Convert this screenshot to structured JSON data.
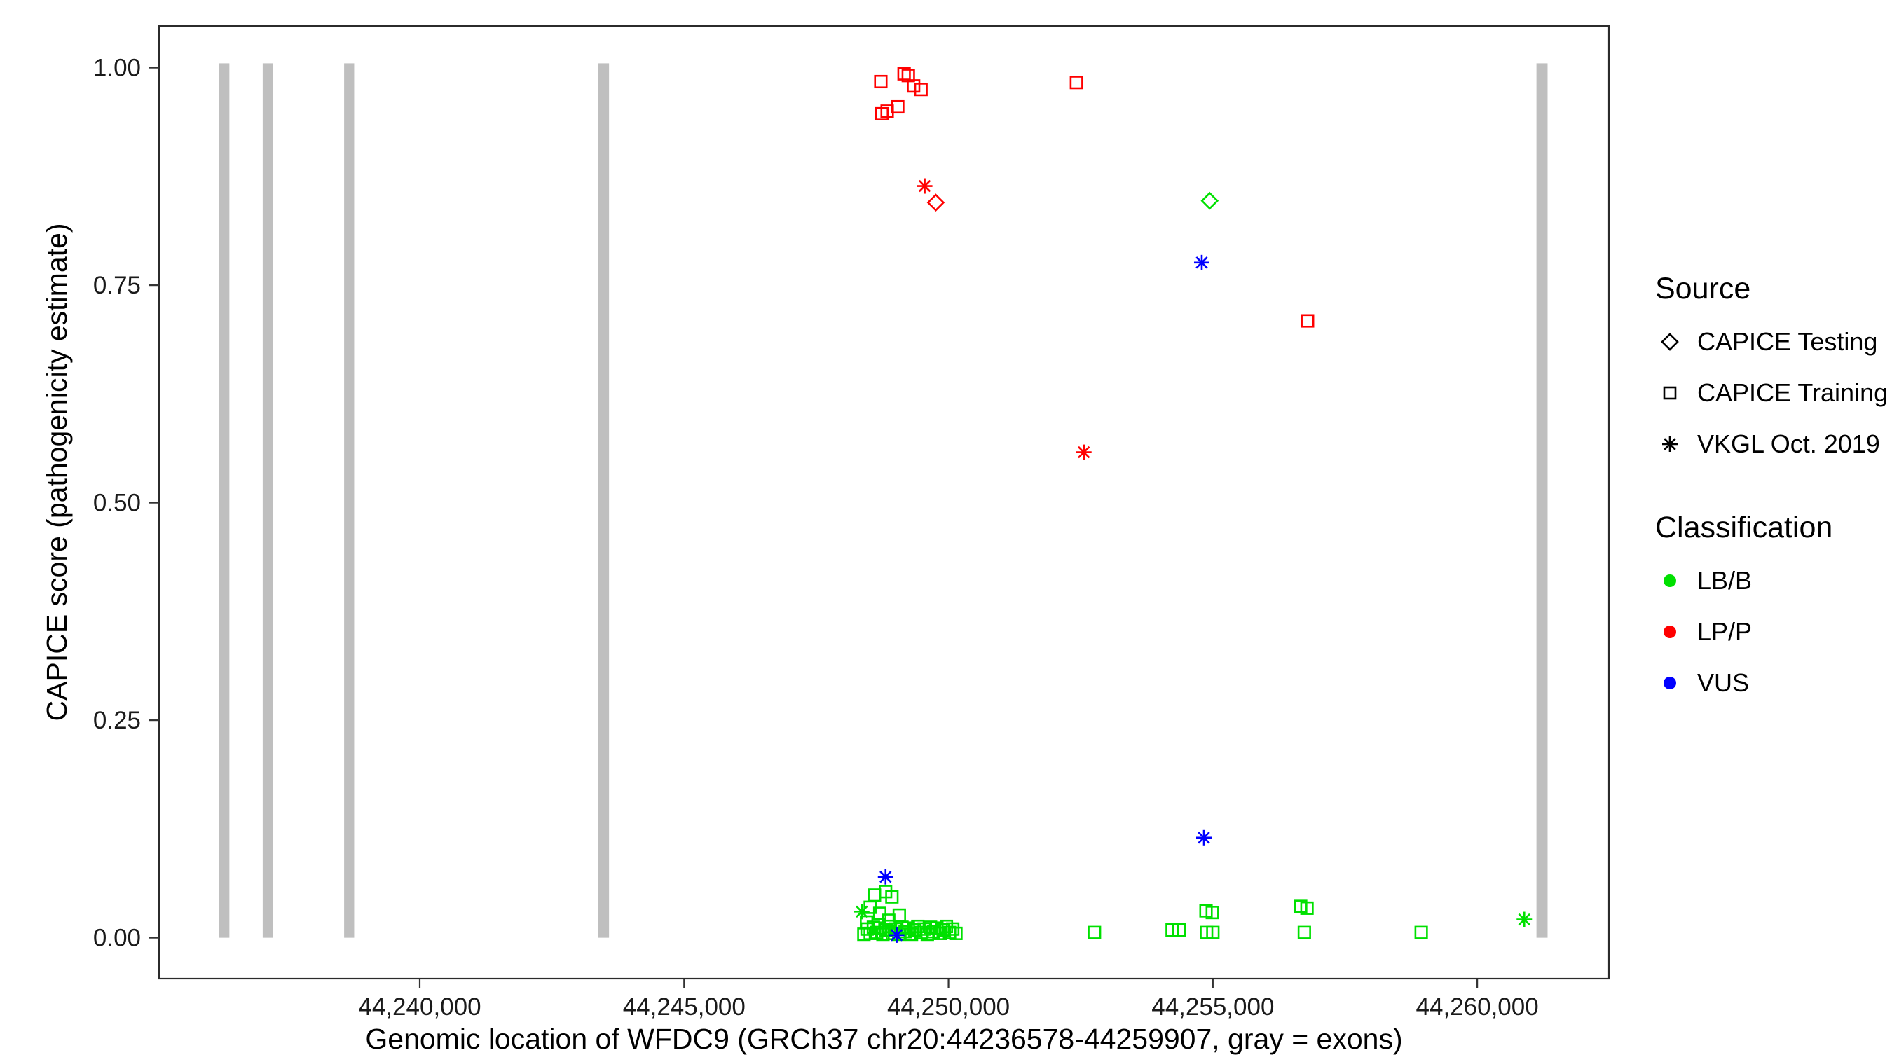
{
  "chart_data": {
    "type": "scatter",
    "title": "",
    "xlabel": "Genomic location of WFDC9 (GRCh37 chr20:44236578-44259907, gray = exons)",
    "ylabel": "CAPICE score (pathogenicity estimate)",
    "x_domain": [
      44235070,
      44262490
    ],
    "y_domain": [
      -0.047,
      1.048
    ],
    "grid": "off",
    "x_ticks": [
      {
        "value": 44240000,
        "label": "44,240,000"
      },
      {
        "value": 44245000,
        "label": "44,245,000"
      },
      {
        "value": 44250000,
        "label": "44,250,000"
      },
      {
        "value": 44255000,
        "label": "44,255,000"
      },
      {
        "value": 44260000,
        "label": "44,260,000"
      }
    ],
    "y_ticks": [
      {
        "value": 0.0,
        "label": "0.00"
      },
      {
        "value": 0.25,
        "label": "0.25"
      },
      {
        "value": 0.5,
        "label": "0.50"
      },
      {
        "value": 0.75,
        "label": "0.75"
      },
      {
        "value": 1.0,
        "label": "1.00"
      }
    ],
    "exon_color": "#BFBFBF",
    "exon_top": 1.005,
    "exon_bottom": 0.0,
    "exons": [
      {
        "start": 44236210,
        "end": 44236400
      },
      {
        "start": 44237030,
        "end": 44237220
      },
      {
        "start": 44238570,
        "end": 44238760
      },
      {
        "start": 44243370,
        "end": 44243580
      },
      {
        "start": 44261120,
        "end": 44261330
      }
    ],
    "classification_colors": {
      "LB/B": "#00E000",
      "LP/P": "#FF0000",
      "VUS": "#0000FF"
    },
    "source_shapes": {
      "CAPICE Testing": "diamond",
      "CAPICE Training": "square",
      "VKGL Oct. 2019": "asterisk"
    },
    "series": [
      {
        "name": "LB/B · CAPICE Training",
        "classification": "LB/B",
        "source": "CAPICE Training",
        "points": [
          [
            44248450,
            0.018
          ],
          [
            44248520,
            0.035
          ],
          [
            44248600,
            0.049
          ],
          [
            44248700,
            0.028
          ],
          [
            44248810,
            0.053
          ],
          [
            44248870,
            0.02
          ],
          [
            44248930,
            0.047
          ],
          [
            44249070,
            0.026
          ],
          [
            44248400,
            0.004
          ],
          [
            44248460,
            0.01
          ],
          [
            44248520,
            0.005
          ],
          [
            44248580,
            0.012
          ],
          [
            44248640,
            0.006
          ],
          [
            44248700,
            0.011
          ],
          [
            44248760,
            0.004
          ],
          [
            44248820,
            0.009
          ],
          [
            44248880,
            0.013
          ],
          [
            44248940,
            0.005
          ],
          [
            44249000,
            0.01
          ],
          [
            44249060,
            0.004
          ],
          [
            44249120,
            0.012
          ],
          [
            44249180,
            0.007
          ],
          [
            44249240,
            0.011
          ],
          [
            44249300,
            0.004
          ],
          [
            44249360,
            0.009
          ],
          [
            44249420,
            0.013
          ],
          [
            44249480,
            0.006
          ],
          [
            44249540,
            0.01
          ],
          [
            44249600,
            0.004
          ],
          [
            44249660,
            0.012
          ],
          [
            44249720,
            0.007
          ],
          [
            44249780,
            0.011
          ],
          [
            44249840,
            0.005
          ],
          [
            44249900,
            0.009
          ],
          [
            44249960,
            0.013
          ],
          [
            44250020,
            0.006
          ],
          [
            44250080,
            0.01
          ],
          [
            44250140,
            0.005
          ],
          [
            44252760,
            0.006
          ],
          [
            44254230,
            0.009
          ],
          [
            44254360,
            0.009
          ],
          [
            44254870,
            0.031
          ],
          [
            44254990,
            0.029
          ],
          [
            44254880,
            0.006
          ],
          [
            44255000,
            0.006
          ],
          [
            44256660,
            0.036
          ],
          [
            44256780,
            0.034
          ],
          [
            44256730,
            0.006
          ],
          [
            44258940,
            0.006
          ]
        ]
      },
      {
        "name": "LB/B · VKGL Oct. 2019",
        "classification": "LB/B",
        "source": "VKGL Oct. 2019",
        "points": [
          [
            44248360,
            0.03
          ],
          [
            44260890,
            0.021
          ]
        ]
      },
      {
        "name": "LB/B · CAPICE Testing",
        "classification": "LB/B",
        "source": "CAPICE Testing",
        "points": [
          [
            44254940,
            0.847
          ]
        ]
      },
      {
        "name": "VUS · VKGL Oct. 2019",
        "classification": "VUS",
        "source": "VKGL Oct. 2019",
        "points": [
          [
            44254790,
            0.776
          ],
          [
            44254830,
            0.115
          ],
          [
            44248810,
            0.07
          ],
          [
            44249020,
            0.003
          ]
        ]
      },
      {
        "name": "LP/P · CAPICE Training",
        "classification": "LP/P",
        "source": "CAPICE Training",
        "points": [
          [
            44248720,
            0.984
          ],
          [
            44249160,
            0.993
          ],
          [
            44249240,
            0.991
          ],
          [
            44249340,
            0.979
          ],
          [
            44249480,
            0.975
          ],
          [
            44248740,
            0.947
          ],
          [
            44248840,
            0.95
          ],
          [
            44249040,
            0.955
          ],
          [
            44252420,
            0.983
          ],
          [
            44256790,
            0.709
          ]
        ]
      },
      {
        "name": "LP/P · VKGL Oct. 2019",
        "classification": "LP/P",
        "source": "VKGL Oct. 2019",
        "points": [
          [
            44249550,
            0.864
          ],
          [
            44252560,
            0.558
          ]
        ]
      },
      {
        "name": "LP/P · CAPICE Testing",
        "classification": "LP/P",
        "source": "CAPICE Testing",
        "points": [
          [
            44249760,
            0.845
          ]
        ]
      }
    ],
    "legend": {
      "source": {
        "title": "Source",
        "items": [
          {
            "label": "CAPICE Testing",
            "shape": "diamond"
          },
          {
            "label": "CAPICE Training",
            "shape": "square"
          },
          {
            "label": "VKGL Oct. 2019",
            "shape": "asterisk"
          }
        ]
      },
      "classification": {
        "title": "Classification",
        "items": [
          {
            "label": "LB/B",
            "color": "#00E000"
          },
          {
            "label": "LP/P",
            "color": "#FF0000"
          },
          {
            "label": "VUS",
            "color": "#0000FF"
          }
        ]
      }
    }
  }
}
